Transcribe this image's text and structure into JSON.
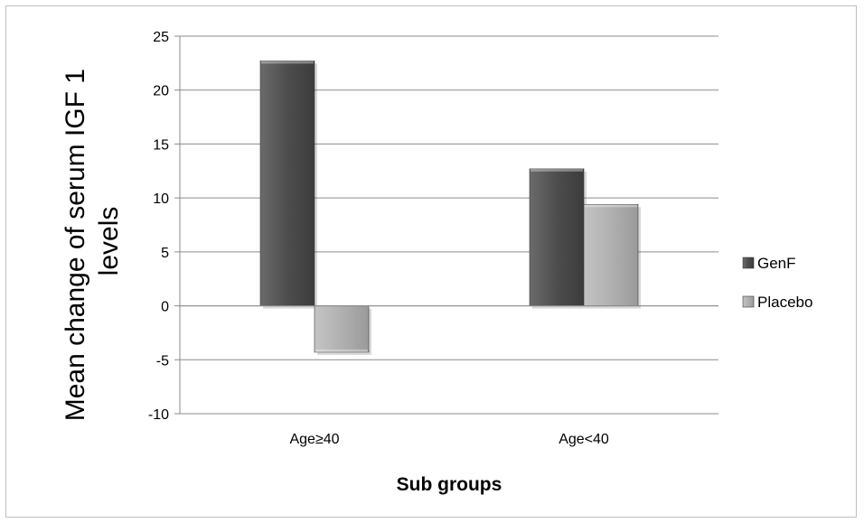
{
  "chart_data": {
    "type": "bar",
    "categories": [
      "Age≥40",
      "Age<40"
    ],
    "series": [
      {
        "name": "GenF",
        "values": [
          22.7,
          12.7
        ]
      },
      {
        "name": "Placebo",
        "values": [
          -4.3,
          9.4
        ]
      }
    ],
    "xlabel": "Sub groups",
    "ylabel_lines": [
      "Mean change of serum IGF 1",
      "levels"
    ],
    "ylim": [
      -10,
      25
    ],
    "yticks": [
      25,
      20,
      15,
      10,
      5,
      0,
      -5,
      -10
    ],
    "ytick_labels": [
      "25",
      "20",
      "15",
      "10",
      "5",
      "0",
      "-5",
      "-10"
    ],
    "grid": true,
    "legend_position": "right",
    "colors": {
      "GenF": "#555555",
      "Placebo": "#b4b4b4"
    }
  }
}
